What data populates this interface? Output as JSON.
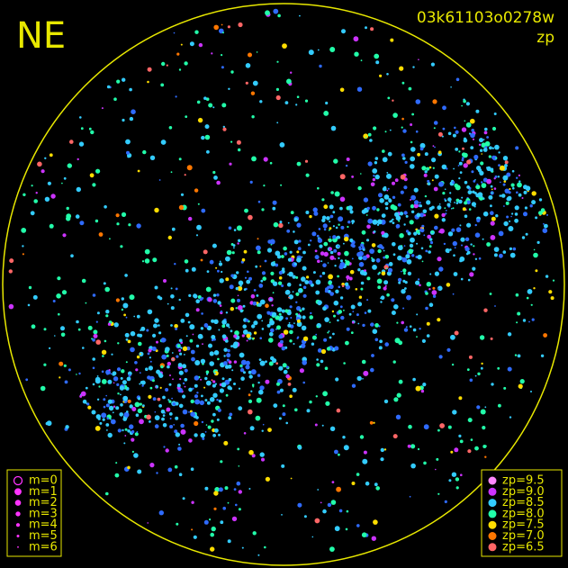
{
  "header": {
    "corner": "NE",
    "frame_id": "03k61103o0278w",
    "mode": "zp"
  },
  "magnitude_legend": [
    "m=0",
    "m=1",
    "m=2",
    "m=3",
    "m=4",
    "m=5",
    "m=6"
  ],
  "zp_legend": [
    {
      "label": "zp=9.5",
      "color": "#ff88ff"
    },
    {
      "label": "zp=9.0",
      "color": "#cc33ff"
    },
    {
      "label": "zp=8.5",
      "color": "#33ccff"
    },
    {
      "label": "zp=8.0",
      "color": "#22ffaa"
    },
    {
      "label": "zp=7.5",
      "color": "#ffdd00"
    },
    {
      "label": "zp=7.0",
      "color": "#ff7700"
    },
    {
      "label": "zp=6.5",
      "color": "#ff6666"
    }
  ]
}
